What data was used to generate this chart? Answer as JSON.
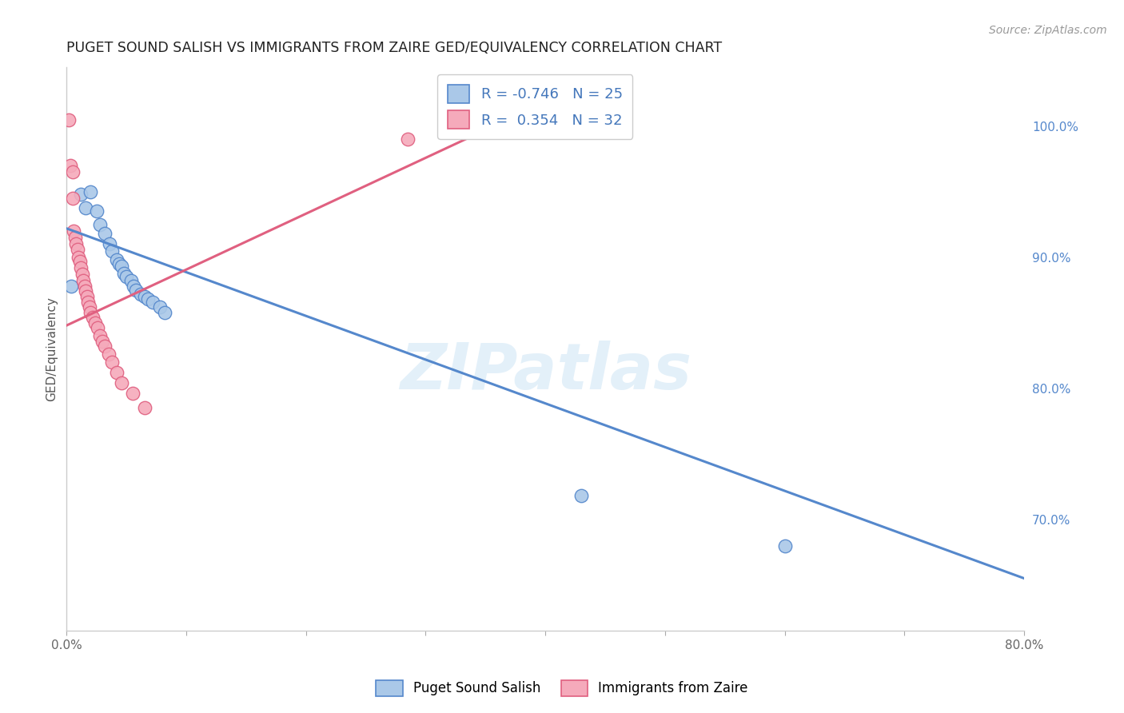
{
  "title": "PUGET SOUND SALISH VS IMMIGRANTS FROM ZAIRE GED/EQUIVALENCY CORRELATION CHART",
  "source": "Source: ZipAtlas.com",
  "ylabel": "GED/Equivalency",
  "x_min": 0.0,
  "x_max": 0.8,
  "y_min": 0.615,
  "y_max": 1.045,
  "y_ticks_right": [
    0.7,
    0.8,
    0.9,
    1.0
  ],
  "y_tick_labels_right": [
    "70.0%",
    "80.0%",
    "90.0%",
    "100.0%"
  ],
  "blue_scatter_x": [
    0.004,
    0.012,
    0.016,
    0.02,
    0.025,
    0.028,
    0.032,
    0.036,
    0.038,
    0.042,
    0.044,
    0.046,
    0.048,
    0.05,
    0.054,
    0.056,
    0.058,
    0.062,
    0.065,
    0.068,
    0.072,
    0.078,
    0.082,
    0.43,
    0.6
  ],
  "blue_scatter_y": [
    0.878,
    0.948,
    0.938,
    0.95,
    0.935,
    0.925,
    0.918,
    0.91,
    0.905,
    0.898,
    0.895,
    0.893,
    0.888,
    0.885,
    0.882,
    0.878,
    0.875,
    0.872,
    0.87,
    0.868,
    0.866,
    0.862,
    0.858,
    0.718,
    0.68
  ],
  "pink_scatter_x": [
    0.002,
    0.003,
    0.005,
    0.005,
    0.006,
    0.007,
    0.008,
    0.009,
    0.01,
    0.011,
    0.012,
    0.013,
    0.014,
    0.015,
    0.016,
    0.017,
    0.018,
    0.019,
    0.02,
    0.022,
    0.024,
    0.026,
    0.028,
    0.03,
    0.032,
    0.035,
    0.038,
    0.042,
    0.046,
    0.055,
    0.065,
    0.285
  ],
  "pink_scatter_y": [
    1.005,
    0.97,
    0.945,
    0.965,
    0.92,
    0.915,
    0.91,
    0.906,
    0.9,
    0.897,
    0.892,
    0.887,
    0.882,
    0.878,
    0.874,
    0.87,
    0.866,
    0.862,
    0.858,
    0.854,
    0.85,
    0.846,
    0.84,
    0.836,
    0.832,
    0.826,
    0.82,
    0.812,
    0.804,
    0.796,
    0.785,
    0.99
  ],
  "blue_line_x": [
    0.0,
    0.8
  ],
  "blue_line_y": [
    0.922,
    0.655
  ],
  "pink_line_x": [
    0.0,
    0.38
  ],
  "pink_line_y": [
    0.848,
    1.01
  ],
  "R_blue": "-0.746",
  "N_blue": "25",
  "R_pink": "0.354",
  "N_pink": "32",
  "blue_color": "#aac8e8",
  "pink_color": "#f5aabb",
  "blue_line_color": "#5588cc",
  "pink_line_color": "#e06080",
  "legend_label_blue": "Puget Sound Salish",
  "legend_label_pink": "Immigrants from Zaire",
  "watermark_text": "ZIPatlas",
  "background_color": "#ffffff"
}
